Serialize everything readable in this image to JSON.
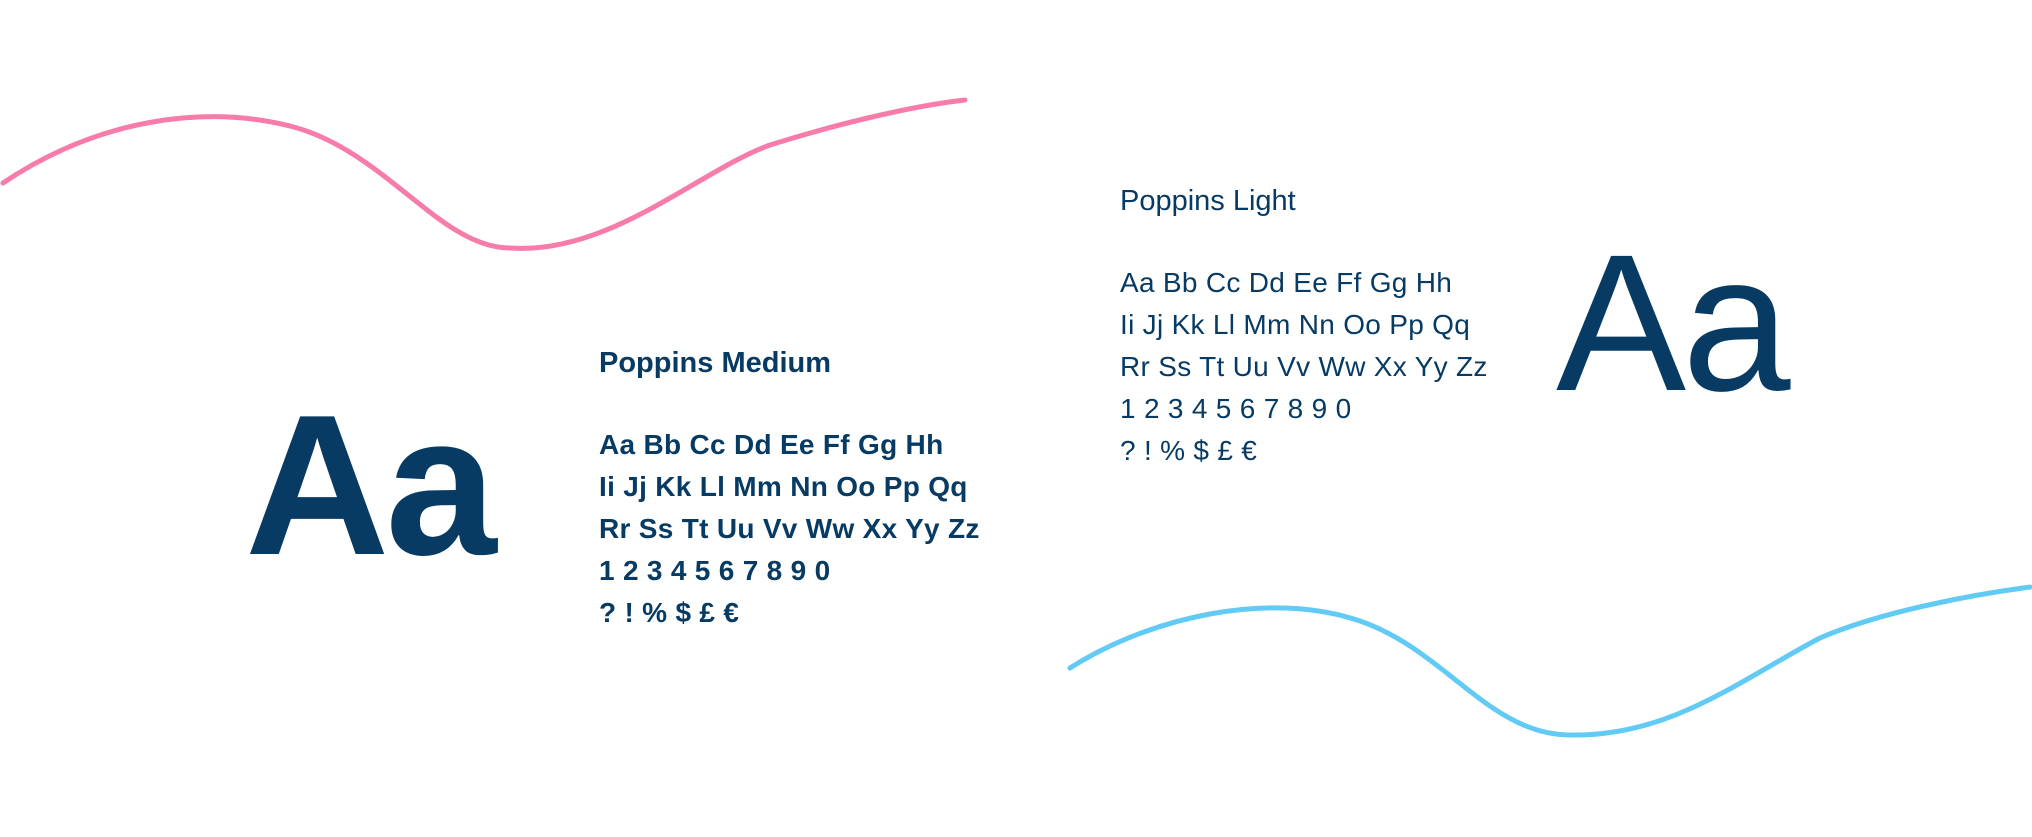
{
  "colors": {
    "text": "#073b64",
    "pink_wave": "#f77bab",
    "blue_wave": "#62cbf5",
    "background": "#ffffff"
  },
  "medium_specimen": {
    "sample": "Aa",
    "font_name": "Poppins Medium",
    "lines": [
      "Aa Bb Cc Dd Ee Ff Gg Hh",
      "Ii Jj Kk Ll Mm Nn Oo Pp Qq",
      "Rr Ss Tt Uu Vv Ww Xx Yy Zz",
      "1 2 3 4 5 6 7 8 9 0",
      "? ! % $ £ €"
    ]
  },
  "light_specimen": {
    "sample": "Aa",
    "font_name": "Poppins Light",
    "lines": [
      "Aa Bb Cc Dd Ee Ff Gg Hh",
      "Ii Jj Kk Ll Mm Nn Oo Pp Qq",
      "Rr Ss Tt Uu Vv Ww Xx Yy Zz",
      "1 2 3 4 5 6 7 8 9 0",
      "? ! % $ £ €"
    ]
  }
}
